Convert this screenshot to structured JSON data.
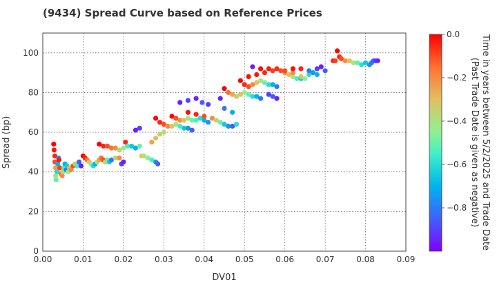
{
  "chart_data": {
    "type": "scatter",
    "title": "(9434)   Spread Curve based on Reference Prices",
    "xlabel": "DV01",
    "ylabel": "Spread (bp)",
    "xlim": [
      0.0,
      0.09
    ],
    "ylim": [
      0,
      110
    ],
    "xticks": [
      "0.00",
      "0.01",
      "0.02",
      "0.03",
      "0.04",
      "0.05",
      "0.06",
      "0.07",
      "0.08",
      "0.09"
    ],
    "yticks": [
      "0",
      "20",
      "40",
      "60",
      "80",
      "100"
    ],
    "grid": true,
    "colorbar": {
      "label": "Time in years between 5/2/2025 and Trade Date\n(Past Trade Date is given as negative)",
      "range": [
        -1.0,
        0.0
      ],
      "ticks": [
        "0.0",
        "−0.2",
        "−0.4",
        "−0.6",
        "−0.8"
      ],
      "colormap": "rainbow"
    },
    "points": [
      [
        0.0027,
        54,
        0.0
      ],
      [
        0.0028,
        51,
        -0.03
      ],
      [
        0.003,
        48,
        -0.05
      ],
      [
        0.003,
        45,
        -0.1
      ],
      [
        0.0031,
        42,
        -0.25
      ],
      [
        0.0032,
        38,
        -0.4
      ],
      [
        0.0033,
        36,
        -0.5
      ],
      [
        0.0035,
        40,
        -0.6
      ],
      [
        0.0037,
        44,
        -0.7
      ],
      [
        0.0039,
        47,
        -0.75
      ],
      [
        0.004,
        46,
        -0.03
      ],
      [
        0.0042,
        42,
        -0.08
      ],
      [
        0.0045,
        39,
        -0.15
      ],
      [
        0.0048,
        38,
        -0.2
      ],
      [
        0.005,
        40,
        -0.35
      ],
      [
        0.0052,
        42,
        -0.55
      ],
      [
        0.0055,
        44,
        -0.7
      ],
      [
        0.0058,
        41,
        -0.8
      ],
      [
        0.006,
        43,
        -0.65
      ],
      [
        0.0063,
        40,
        -0.45
      ],
      [
        0.0066,
        42,
        -0.3
      ],
      [
        0.007,
        41,
        -0.2
      ],
      [
        0.0075,
        43,
        -0.1
      ],
      [
        0.008,
        44,
        -0.3
      ],
      [
        0.0085,
        43,
        -0.55
      ],
      [
        0.009,
        45,
        -0.85
      ],
      [
        0.0095,
        43,
        -0.95
      ],
      [
        0.01,
        48,
        0.0
      ],
      [
        0.0105,
        47,
        -0.05
      ],
      [
        0.011,
        46,
        -0.15
      ],
      [
        0.0115,
        45,
        -0.3
      ],
      [
        0.012,
        44,
        -0.45
      ],
      [
        0.0125,
        43,
        -0.6
      ],
      [
        0.013,
        44,
        -0.7
      ],
      [
        0.0135,
        45,
        -0.4
      ],
      [
        0.014,
        46,
        -0.25
      ],
      [
        0.0145,
        47,
        -0.15
      ],
      [
        0.015,
        46,
        -0.1
      ],
      [
        0.0155,
        45,
        -0.35
      ],
      [
        0.016,
        46,
        -0.5
      ],
      [
        0.0165,
        45,
        -0.65
      ],
      [
        0.017,
        46,
        -0.8
      ],
      [
        0.018,
        47,
        -0.35
      ],
      [
        0.019,
        47,
        -0.2
      ],
      [
        0.0195,
        44,
        -0.9
      ],
      [
        0.02,
        45,
        -0.95
      ],
      [
        0.014,
        54,
        0.0
      ],
      [
        0.015,
        53,
        -0.05
      ],
      [
        0.016,
        53,
        -0.1
      ],
      [
        0.017,
        52,
        -0.15
      ],
      [
        0.018,
        52,
        -0.2
      ],
      [
        0.019,
        51,
        -0.35
      ],
      [
        0.02,
        52,
        -0.45
      ],
      [
        0.0205,
        55,
        -0.05
      ],
      [
        0.021,
        53,
        -0.55
      ],
      [
        0.022,
        53,
        -0.65
      ],
      [
        0.023,
        52,
        -0.7
      ],
      [
        0.024,
        53,
        -0.5
      ],
      [
        0.0245,
        48,
        -0.3
      ],
      [
        0.025,
        48,
        -0.4
      ],
      [
        0.026,
        47,
        -0.45
      ],
      [
        0.027,
        46,
        -0.55
      ],
      [
        0.028,
        45,
        -0.75
      ],
      [
        0.0285,
        44,
        -0.85
      ],
      [
        0.023,
        61,
        -0.95
      ],
      [
        0.024,
        62,
        -0.9
      ],
      [
        0.027,
        55,
        -0.25
      ],
      [
        0.028,
        57,
        -0.3
      ],
      [
        0.029,
        59,
        -0.35
      ],
      [
        0.03,
        60,
        -0.4
      ],
      [
        0.028,
        67,
        0.0
      ],
      [
        0.029,
        65,
        -0.05
      ],
      [
        0.03,
        64,
        -0.1
      ],
      [
        0.031,
        63,
        -0.2
      ],
      [
        0.032,
        63,
        -0.3
      ],
      [
        0.033,
        64,
        -0.4
      ],
      [
        0.034,
        63,
        -0.55
      ],
      [
        0.035,
        62,
        -0.65
      ],
      [
        0.036,
        62,
        -0.75
      ],
      [
        0.037,
        61,
        -0.85
      ],
      [
        0.032,
        68,
        0.0
      ],
      [
        0.033,
        67,
        -0.1
      ],
      [
        0.034,
        66,
        -0.2
      ],
      [
        0.035,
        66,
        -0.3
      ],
      [
        0.036,
        67,
        -0.4
      ],
      [
        0.037,
        66,
        -0.5
      ],
      [
        0.038,
        66,
        -0.55
      ],
      [
        0.039,
        67,
        -0.6
      ],
      [
        0.04,
        66,
        -0.7
      ],
      [
        0.041,
        65,
        -0.75
      ],
      [
        0.036,
        70,
        -0.02
      ],
      [
        0.038,
        69,
        -0.05
      ],
      [
        0.04,
        68,
        -0.1
      ],
      [
        0.042,
        67,
        -0.2
      ],
      [
        0.043,
        66,
        -0.35
      ],
      [
        0.044,
        65,
        -0.5
      ],
      [
        0.045,
        64,
        -0.65
      ],
      [
        0.046,
        63,
        -0.75
      ],
      [
        0.047,
        63,
        -0.85
      ],
      [
        0.034,
        75,
        -0.95
      ],
      [
        0.036,
        76,
        -0.9
      ],
      [
        0.038,
        77,
        -0.95
      ],
      [
        0.0395,
        75,
        -0.85
      ],
      [
        0.041,
        74,
        -0.9
      ],
      [
        0.044,
        77,
        -0.95
      ],
      [
        0.045,
        72,
        -0.8
      ],
      [
        0.047,
        70,
        -0.7
      ],
      [
        0.048,
        64,
        -0.6
      ],
      [
        0.045,
        82,
        0.0
      ],
      [
        0.046,
        80,
        -0.15
      ],
      [
        0.047,
        79,
        -0.25
      ],
      [
        0.048,
        78,
        -0.35
      ],
      [
        0.049,
        79,
        -0.3
      ],
      [
        0.05,
        80,
        -0.45
      ],
      [
        0.051,
        79,
        -0.5
      ],
      [
        0.052,
        78,
        -0.6
      ],
      [
        0.053,
        78,
        -0.7
      ],
      [
        0.054,
        77,
        -0.8
      ],
      [
        0.049,
        86,
        0.0
      ],
      [
        0.05,
        84,
        -0.05
      ],
      [
        0.051,
        83,
        -0.1
      ],
      [
        0.052,
        84,
        -0.2
      ],
      [
        0.053,
        85,
        -0.3
      ],
      [
        0.054,
        86,
        -0.4
      ],
      [
        0.055,
        85,
        -0.5
      ],
      [
        0.056,
        84,
        -0.6
      ],
      [
        0.057,
        84,
        -0.7
      ],
      [
        0.058,
        83,
        -0.8
      ],
      [
        0.051,
        88,
        -0.02
      ],
      [
        0.053,
        89,
        -0.03
      ],
      [
        0.055,
        90,
        -0.05
      ],
      [
        0.057,
        91,
        -0.08
      ],
      [
        0.059,
        91,
        -0.1
      ],
      [
        0.06,
        90,
        -0.2
      ],
      [
        0.061,
        89,
        -0.3
      ],
      [
        0.062,
        88,
        -0.4
      ],
      [
        0.063,
        87,
        -0.55
      ],
      [
        0.064,
        87,
        -0.65
      ],
      [
        0.052,
        93,
        -0.95
      ],
      [
        0.054,
        92,
        -0.02
      ],
      [
        0.056,
        92,
        -0.04
      ],
      [
        0.058,
        92,
        -0.06
      ],
      [
        0.06,
        91,
        -0.1
      ],
      [
        0.062,
        90,
        -0.2
      ],
      [
        0.064,
        88,
        -0.3
      ],
      [
        0.065,
        87,
        -0.45
      ],
      [
        0.066,
        89,
        -0.6
      ],
      [
        0.067,
        90,
        -0.75
      ],
      [
        0.062,
        92,
        -0.02
      ],
      [
        0.064,
        92,
        -0.05
      ],
      [
        0.066,
        91,
        -0.8
      ],
      [
        0.068,
        92,
        -0.9
      ],
      [
        0.069,
        93,
        -0.95
      ],
      [
        0.07,
        91,
        -0.85
      ],
      [
        0.068,
        89,
        -0.7
      ],
      [
        0.056,
        79,
        -0.9
      ],
      [
        0.057,
        78,
        -0.85
      ],
      [
        0.058,
        77,
        -0.95
      ],
      [
        0.073,
        101,
        0.0
      ],
      [
        0.0735,
        98,
        -0.05
      ],
      [
        0.074,
        97,
        -0.1
      ],
      [
        0.075,
        96,
        -0.2
      ],
      [
        0.076,
        96,
        -0.3
      ],
      [
        0.077,
        95,
        -0.4
      ],
      [
        0.078,
        95,
        -0.5
      ],
      [
        0.079,
        94,
        -0.6
      ],
      [
        0.08,
        95,
        -0.65
      ],
      [
        0.081,
        94,
        -0.75
      ],
      [
        0.0815,
        95,
        -0.8
      ],
      [
        0.082,
        96,
        -0.85
      ],
      [
        0.0825,
        96,
        -0.9
      ],
      [
        0.083,
        96,
        -0.95
      ],
      [
        0.072,
        96,
        -0.03
      ],
      [
        0.0725,
        96,
        -0.08
      ]
    ]
  }
}
